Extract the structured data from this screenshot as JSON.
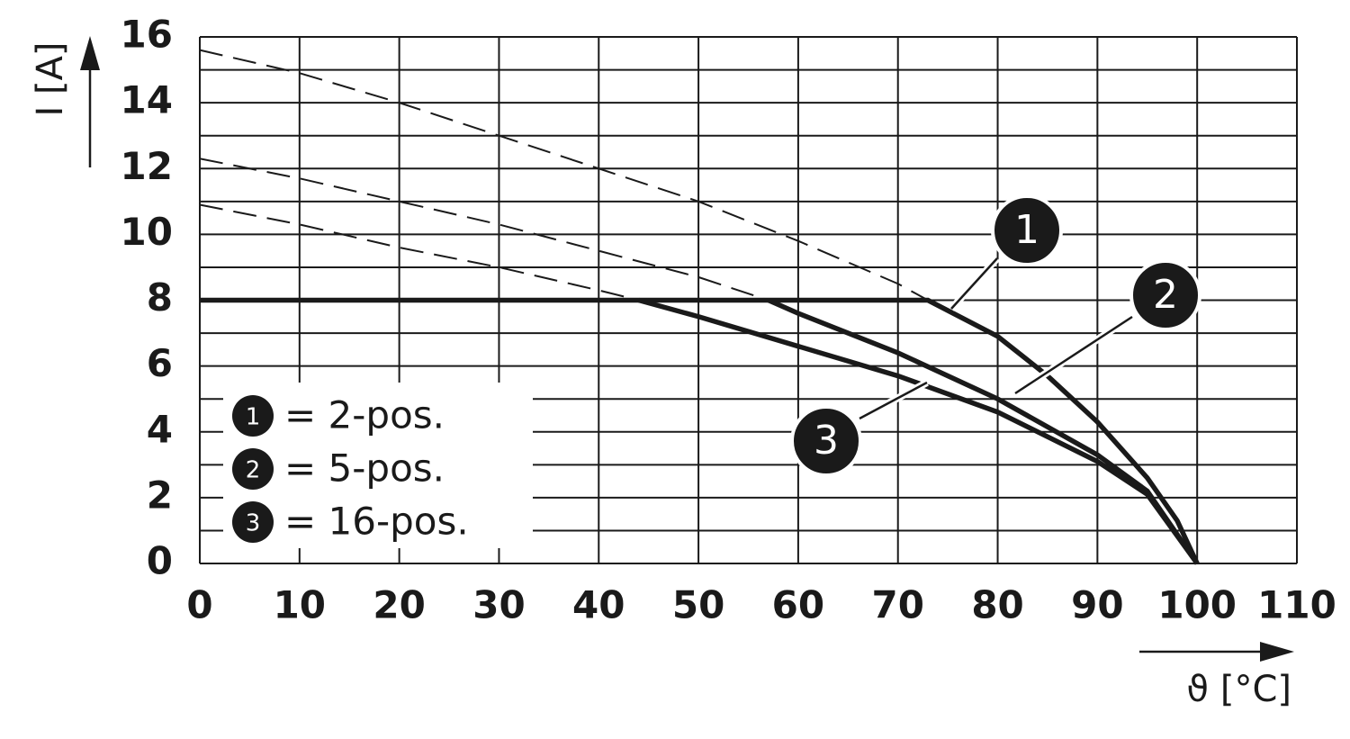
{
  "chart_data": {
    "type": "line",
    "xlabel": "ϑ [°C]",
    "ylabel": "I [A]",
    "xlim": [
      0,
      110
    ],
    "ylim": [
      0,
      16
    ],
    "xticks": [
      0,
      10,
      20,
      30,
      40,
      50,
      60,
      70,
      80,
      90,
      100,
      110
    ],
    "yticks": [
      0,
      2,
      4,
      6,
      8,
      10,
      12,
      14,
      16
    ],
    "ygrid": [
      0,
      1,
      2,
      3,
      4,
      5,
      6,
      7,
      8,
      9,
      10,
      11,
      12,
      13,
      14,
      15,
      16
    ],
    "grid": true,
    "series": [
      {
        "style": "dashed",
        "color": "#1a1a1a",
        "x": [
          0,
          10,
          20,
          30,
          40,
          50,
          60,
          70,
          73
        ],
        "values": [
          15.6,
          14.9,
          14.0,
          13.0,
          12.0,
          11.0,
          9.8,
          8.5,
          8
        ]
      },
      {
        "style": "dashed",
        "color": "#1a1a1a",
        "x": [
          0,
          10,
          20,
          30,
          40,
          50,
          57
        ],
        "values": [
          12.3,
          11.7,
          11.0,
          10.3,
          9.5,
          8.7,
          8
        ]
      },
      {
        "style": "dashed",
        "color": "#1a1a1a",
        "x": [
          0,
          10,
          20,
          30,
          40,
          44
        ],
        "values": [
          10.9,
          10.3,
          9.6,
          9.0,
          8.3,
          8
        ]
      },
      {
        "style": "solid",
        "color": "#1a1a1a",
        "x": [
          0,
          73,
          80,
          85,
          90,
          95,
          98,
          100
        ],
        "values": [
          8,
          8,
          6.9,
          5.7,
          4.3,
          2.6,
          1.3,
          0
        ]
      },
      {
        "style": "solid",
        "color": "#1a1a1a",
        "x": [
          57,
          60,
          70,
          80,
          90,
          95,
          100
        ],
        "values": [
          8,
          7.6,
          6.4,
          5.0,
          3.3,
          2.2,
          0
        ]
      },
      {
        "style": "solid",
        "color": "#1a1a1a",
        "x": [
          44,
          50,
          60,
          70,
          80,
          90,
          95,
          100
        ],
        "values": [
          8,
          7.5,
          6.6,
          5.7,
          4.6,
          3.1,
          2.1,
          0
        ]
      }
    ],
    "callouts": [
      "1",
      "2",
      "3"
    ],
    "legend": [
      {
        "marker": "1",
        "label": "= 2-pos."
      },
      {
        "marker": "2",
        "label": "= 5-pos."
      },
      {
        "marker": "3",
        "label": "= 16-pos."
      }
    ]
  }
}
